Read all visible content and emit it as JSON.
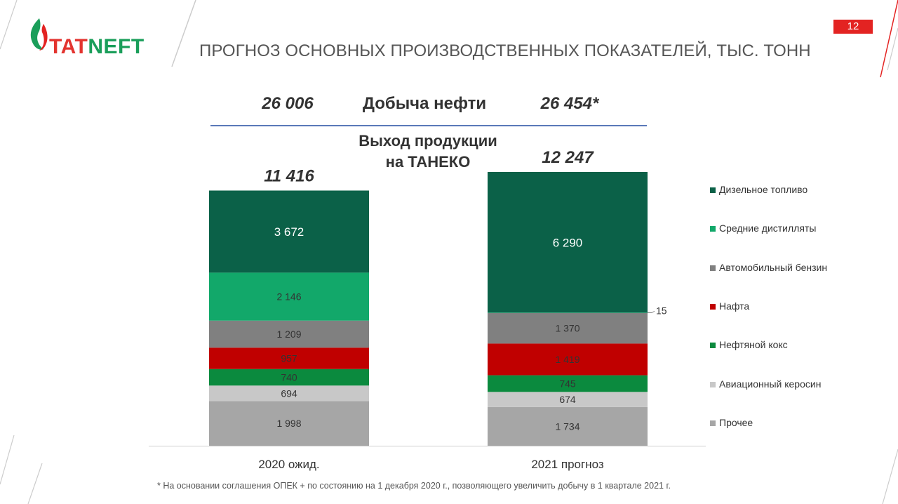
{
  "brand": {
    "logo_text_a": "TAT",
    "logo_text_b": "NEFT"
  },
  "page_number": "12",
  "title": "ПРОГНОЗ ОСНОВНЫХ ПРОИЗВОДСТВЕННЫХ ПОКАЗАТЕЛЕЙ, ТЫС. ТОНН",
  "oil_production": {
    "label": "Добыча нефти",
    "value_2020": "26 006",
    "value_2021": "26 454*"
  },
  "footnote": "* На основании соглашения ОПЕК + по состоянию на 1 декабря 2020 г., позволяющего увеличить добычу в 1 квартале 2021 г.",
  "colors": {
    "accent_red": "#e32322",
    "brand_green": "#1a9e5a",
    "header_line": "#5a79b8"
  },
  "chart_data": {
    "type": "bar",
    "stacked": true,
    "title_lines": [
      "Выход продукции",
      "на ТАНЕКО"
    ],
    "categories": [
      "2020 ожид.",
      "2021 прогноз"
    ],
    "totals": [
      "11 416",
      "12 247"
    ],
    "legend_position": "right",
    "series": [
      {
        "name": "Прочее",
        "color": "#a6a6a6",
        "values": [
          1998,
          1734
        ],
        "labels": [
          "1 998",
          "1 734"
        ],
        "label_color": "#333333"
      },
      {
        "name": "Авиационный керосин",
        "color": "#c8c8c8",
        "values": [
          694,
          674
        ],
        "labels": [
          "694",
          "674"
        ],
        "label_color": "#333333"
      },
      {
        "name": "Нефтяной кокс",
        "color": "#0b8a3e",
        "values": [
          740,
          745
        ],
        "labels": [
          "740",
          "745"
        ],
        "label_color": "#333333"
      },
      {
        "name": "Нафта",
        "color": "#c00000",
        "values": [
          957,
          1419
        ],
        "labels": [
          "957",
          "1 419"
        ],
        "label_color": "#333333"
      },
      {
        "name": "Автомобильный бензин",
        "color": "#808080",
        "values": [
          1209,
          1370
        ],
        "labels": [
          "1 209",
          "1 370"
        ],
        "label_color": "#333333"
      },
      {
        "name": "Средние дистилляты",
        "color": "#12a86a",
        "values": [
          2146,
          15
        ],
        "labels": [
          "2 146",
          "15"
        ],
        "label_color": "#333333"
      },
      {
        "name": "Дизельное топливо",
        "color": "#0b6148",
        "values": [
          3672,
          6290
        ],
        "labels": [
          "3 672",
          "6 290"
        ],
        "label_color": "#ffffff"
      }
    ],
    "legend_order": [
      "Дизельное топливо",
      "Средние дистилляты",
      "Автомобильный бензин",
      "Нафта",
      "Нефтяной кокс",
      "Авиационный керосин",
      "Прочее"
    ]
  }
}
